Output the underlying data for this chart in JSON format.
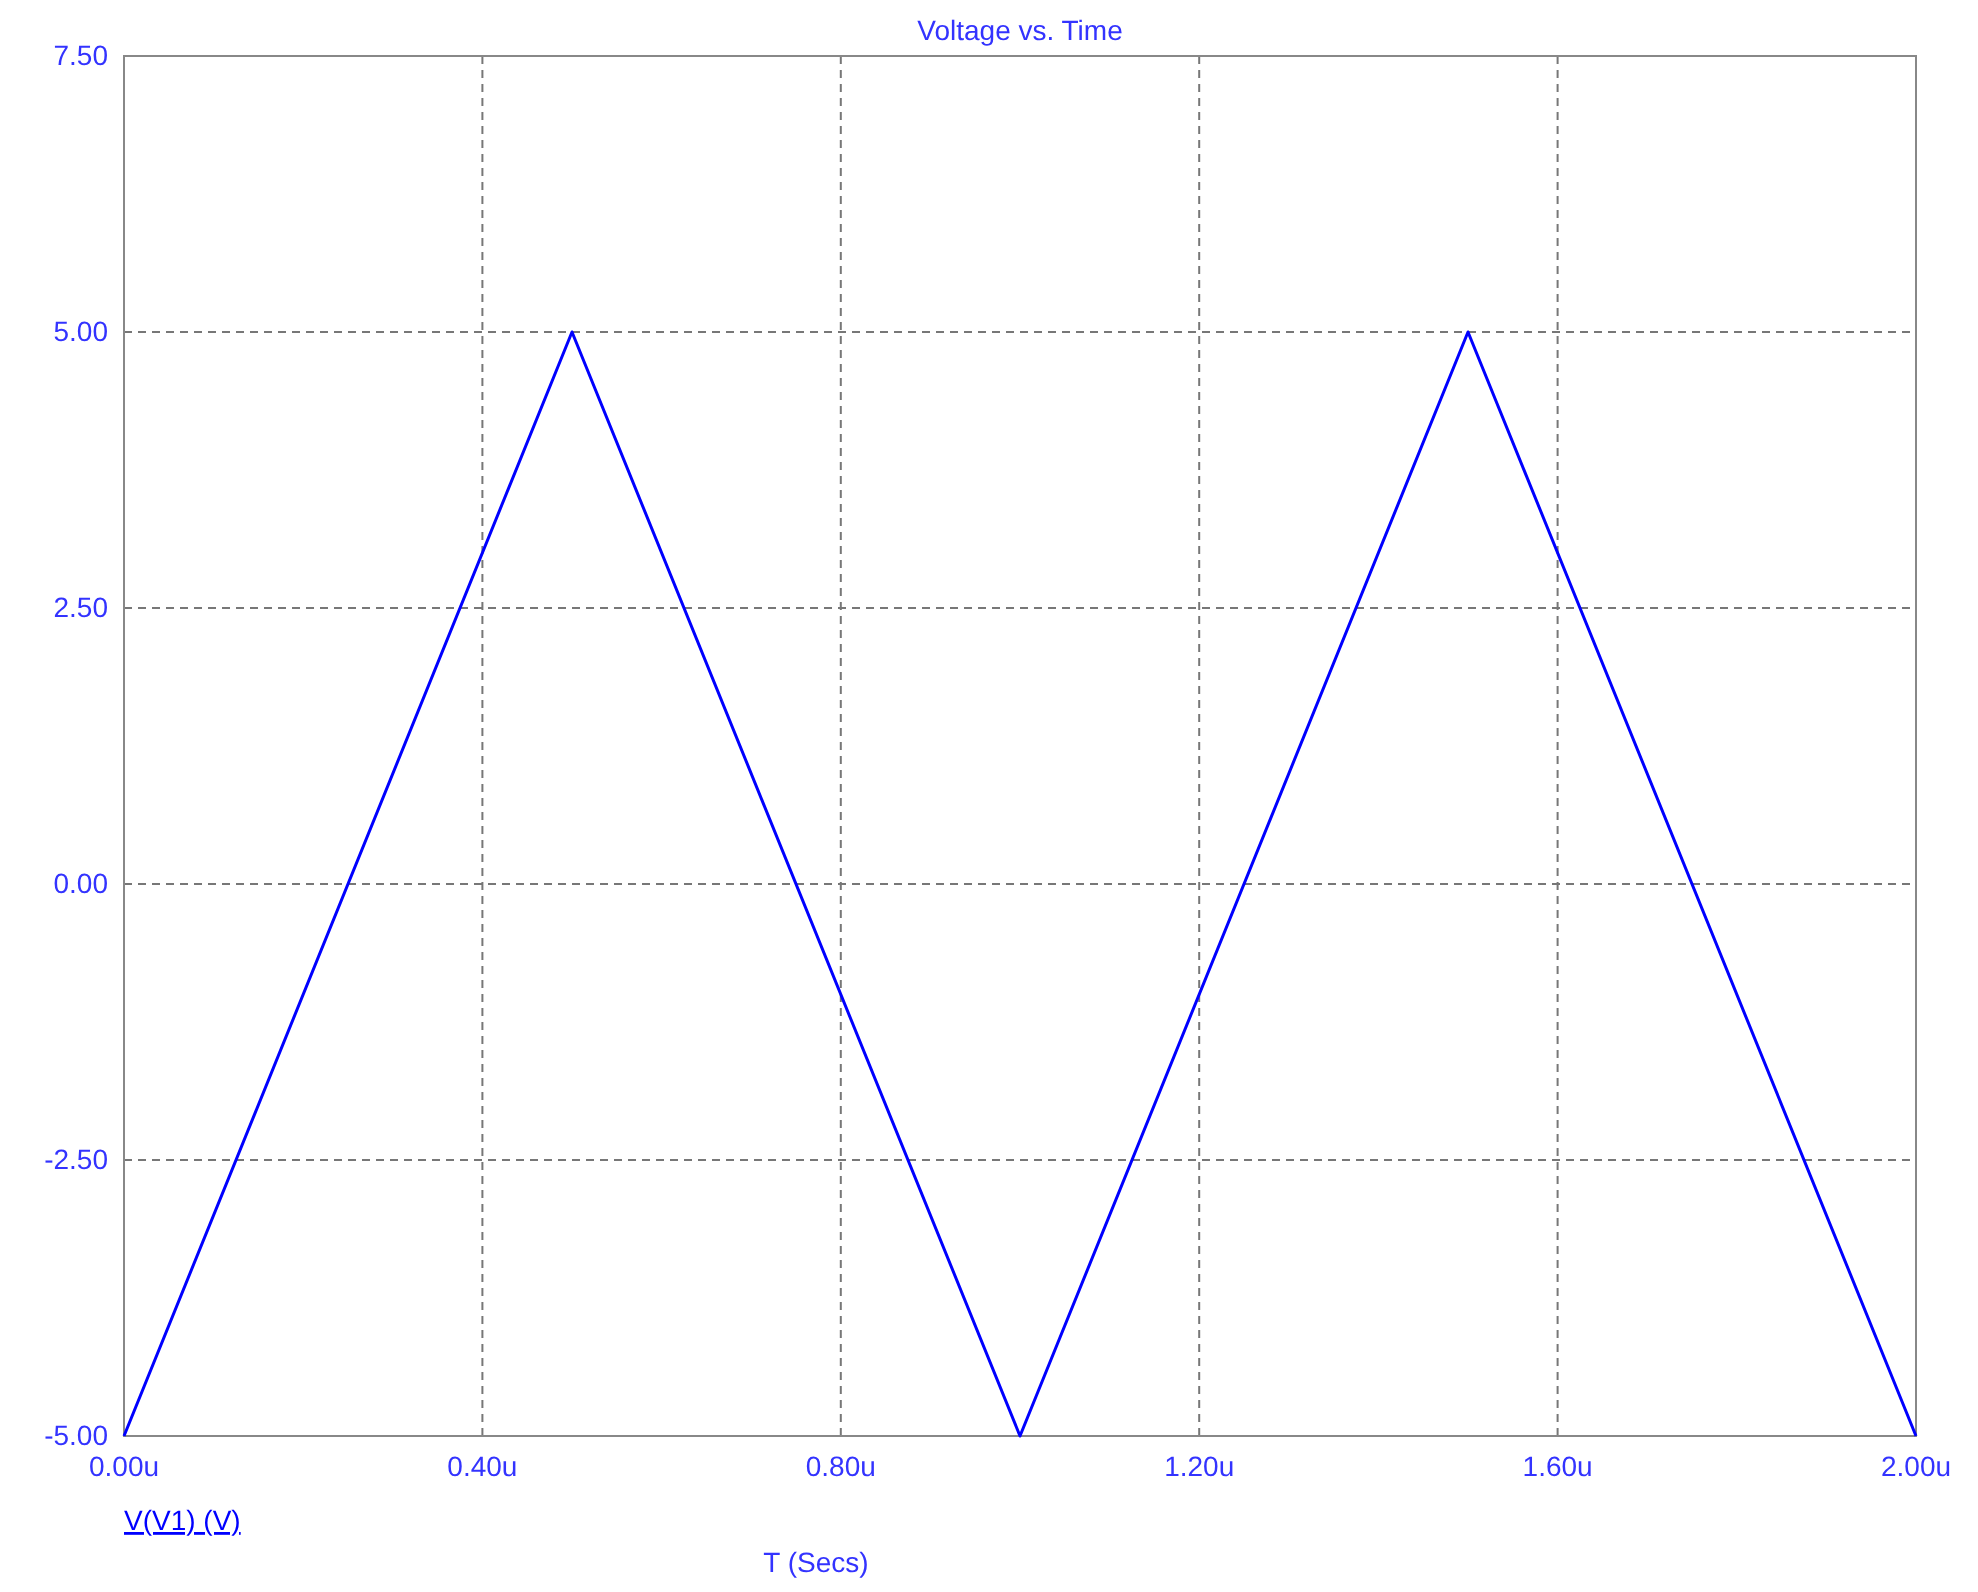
{
  "chart_data": {
    "type": "line",
    "title": "Voltage vs. Time",
    "xlabel": "T (Secs)",
    "x": [
      0,
      0.5,
      1,
      1.5,
      2
    ],
    "series": [
      {
        "name": "V(V1) (V)",
        "color": "#0000ff",
        "values": [
          -5,
          5,
          -5,
          5,
          -5
        ]
      }
    ],
    "xlim": [
      0,
      2
    ],
    "xticks": [
      {
        "value": 0,
        "label": "0.00u"
      },
      {
        "value": 0.4,
        "label": "0.40u"
      },
      {
        "value": 0.8,
        "label": "0.80u"
      },
      {
        "value": 1.2,
        "label": "1.20u"
      },
      {
        "value": 1.6,
        "label": "1.60u"
      },
      {
        "value": 2,
        "label": "2.00u"
      }
    ],
    "ylim": [
      -5,
      7.5
    ],
    "yticks": [
      {
        "value": -5,
        "label": "-5.00"
      },
      {
        "value": -2.5,
        "label": "-2.50"
      },
      {
        "value": 0,
        "label": "0.00"
      },
      {
        "value": 2.5,
        "label": "2.50"
      },
      {
        "value": 5,
        "label": "5.00"
      },
      {
        "value": 7.5,
        "label": "7.50"
      }
    ],
    "grid": true,
    "legend": "bottom left",
    "marker": "none",
    "line_style": "solid"
  }
}
